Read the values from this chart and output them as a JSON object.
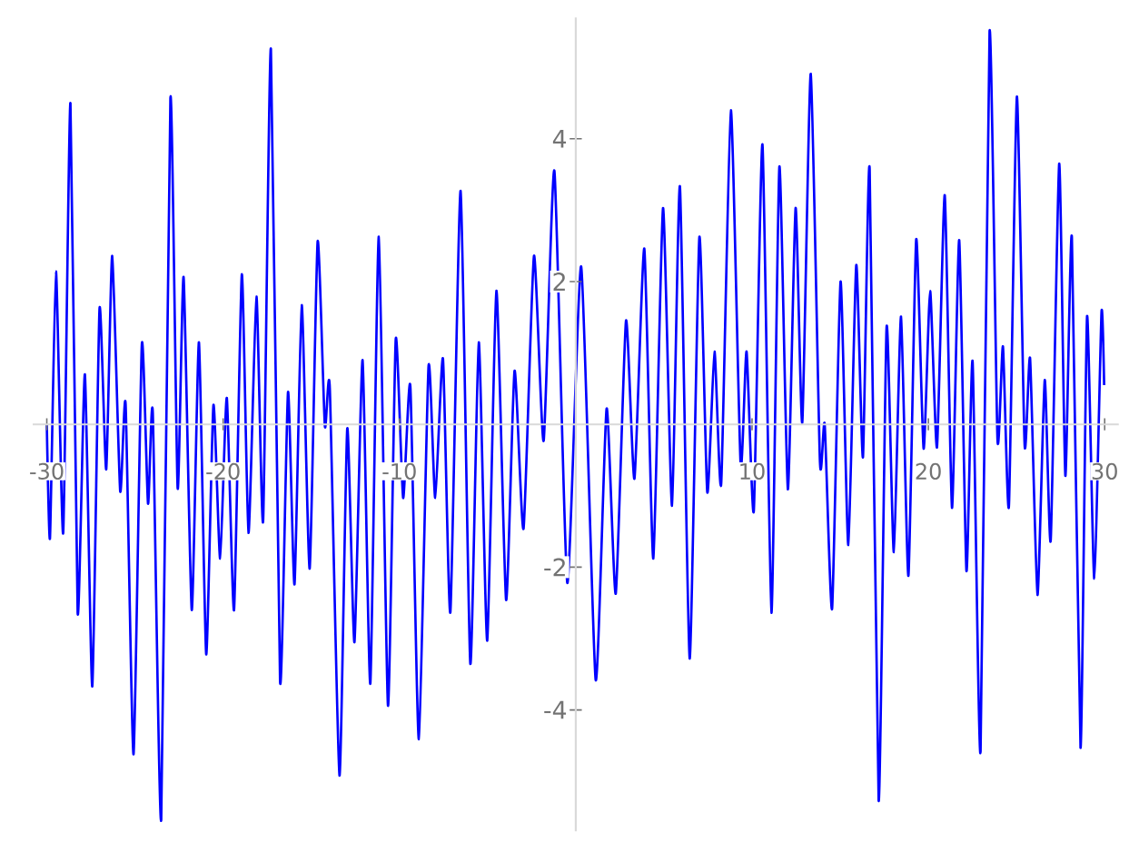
{
  "chart_data": {
    "type": "line",
    "x": [
      -30,
      -29.82,
      -29.48,
      -29.07,
      -28.66,
      -28.25,
      -27.84,
      -27.42,
      -27.01,
      -26.63,
      -26.29,
      -25.84,
      -25.53,
      -25.08,
      -24.61,
      -24.26,
      -23.99,
      -23.51,
      -22.99,
      -22.58,
      -22.24,
      -21.78,
      -21.37,
      -20.96,
      -20.55,
      -20.17,
      -19.79,
      -19.38,
      -18.94,
      -18.56,
      -18.11,
      -17.73,
      -17.29,
      -16.77,
      -16.32,
      -15.95,
      -15.54,
      -15.09,
      -14.64,
      -14.23,
      -13.95,
      -13.4,
      -12.96,
      -12.55,
      -12.09,
      -11.65,
      -11.17,
      -10.65,
      -10.21,
      -9.79,
      -9.38,
      -8.9,
      -8.35,
      -7.97,
      -7.53,
      -7.11,
      -6.53,
      -5.98,
      -5.5,
      -5.02,
      -4.5,
      -3.95,
      -3.47,
      -2.96,
      -2.37,
      -1.82,
      -1.21,
      -0.48,
      0.31,
      1.13,
      1.75,
      2.27,
      2.85,
      3.33,
      3.89,
      4.4,
      4.95,
      5.46,
      5.91,
      6.46,
      7.01,
      7.46,
      7.87,
      8.25,
      8.8,
      9.35,
      9.69,
      10.1,
      10.59,
      11.1,
      11.55,
      12.03,
      12.47,
      12.85,
      13.33,
      13.85,
      14.12,
      14.54,
      15.02,
      15.46,
      15.91,
      16.29,
      16.67,
      17.18,
      17.63,
      18.04,
      18.45,
      18.87,
      19.31,
      19.73,
      20.1,
      20.49,
      20.93,
      21.34,
      21.75,
      22.16,
      22.51,
      22.96,
      23.47,
      23.92,
      24.23,
      24.57,
      25.02,
      25.46,
      25.77,
      26.19,
      26.6,
      26.94,
      27.42,
      27.77,
      28.14,
      28.63,
      29.0,
      29.41,
      29.82,
      29.97
    ],
    "series": [
      {
        "color": "#0000ff",
        "values": [
          0,
          -1.59,
          2.14,
          -1.52,
          4.5,
          -2.64,
          0.7,
          -3.67,
          1.62,
          -0.63,
          2.36,
          -0.93,
          0.28,
          -4.62,
          1.12,
          -1.11,
          0.17,
          -5.53,
          4.57,
          -0.89,
          2.06,
          -2.6,
          1.15,
          -3.22,
          0.27,
          -1.88,
          0.37,
          -2.6,
          2.1,
          -1.52,
          1.79,
          -1.35,
          5.26,
          -3.6,
          0.45,
          -2.24,
          1.67,
          -2.02,
          2.56,
          -0.02,
          0.51,
          -4.92,
          -0.06,
          -3.05,
          0.9,
          -3.63,
          2.63,
          -3.94,
          1.19,
          -1.03,
          0.53,
          -4.41,
          0.81,
          -1.03,
          0.92,
          -2.63,
          3.27,
          -3.35,
          1.15,
          -3.03,
          1.87,
          -2.46,
          0.75,
          -1.46,
          2.36,
          -0.23,
          3.55,
          -2.22,
          2.21,
          -3.58,
          0.22,
          -2.37,
          1.45,
          -0.76,
          2.46,
          -1.88,
          3.03,
          -1.14,
          3.33,
          -3.28,
          2.62,
          -0.95,
          1.02,
          -0.83,
          4.4,
          -0.55,
          1.02,
          -1.21,
          3.92,
          -2.64,
          3.61,
          -0.91,
          3.03,
          0.03,
          4.91,
          -0.52,
          0,
          -2.58,
          2,
          -1.69,
          2.23,
          -0.46,
          3.58,
          -5.27,
          1.36,
          -1.79,
          1.51,
          -2.12,
          2.59,
          -0.34,
          1.87,
          -0.32,
          3.21,
          -1.17,
          2.58,
          -2.05,
          0.88,
          -4.58,
          5.5,
          -0.21,
          1.09,
          -1.14,
          4.59,
          -0.29,
          0.92,
          -2.39,
          0.62,
          -1.62,
          3.65,
          -0.72,
          2.62,
          -4.53,
          1.51,
          -2.16,
          1.57,
          0.55
        ]
      }
    ],
    "xlim": [
      -30.8,
      30.8
    ],
    "ylim": [
      -5.7,
      5.7
    ],
    "xticks": [
      -30,
      -20,
      -10,
      10,
      20,
      30
    ],
    "yticks": [
      -4,
      -2,
      2,
      4
    ],
    "marker": "none",
    "line_style": "solid"
  }
}
